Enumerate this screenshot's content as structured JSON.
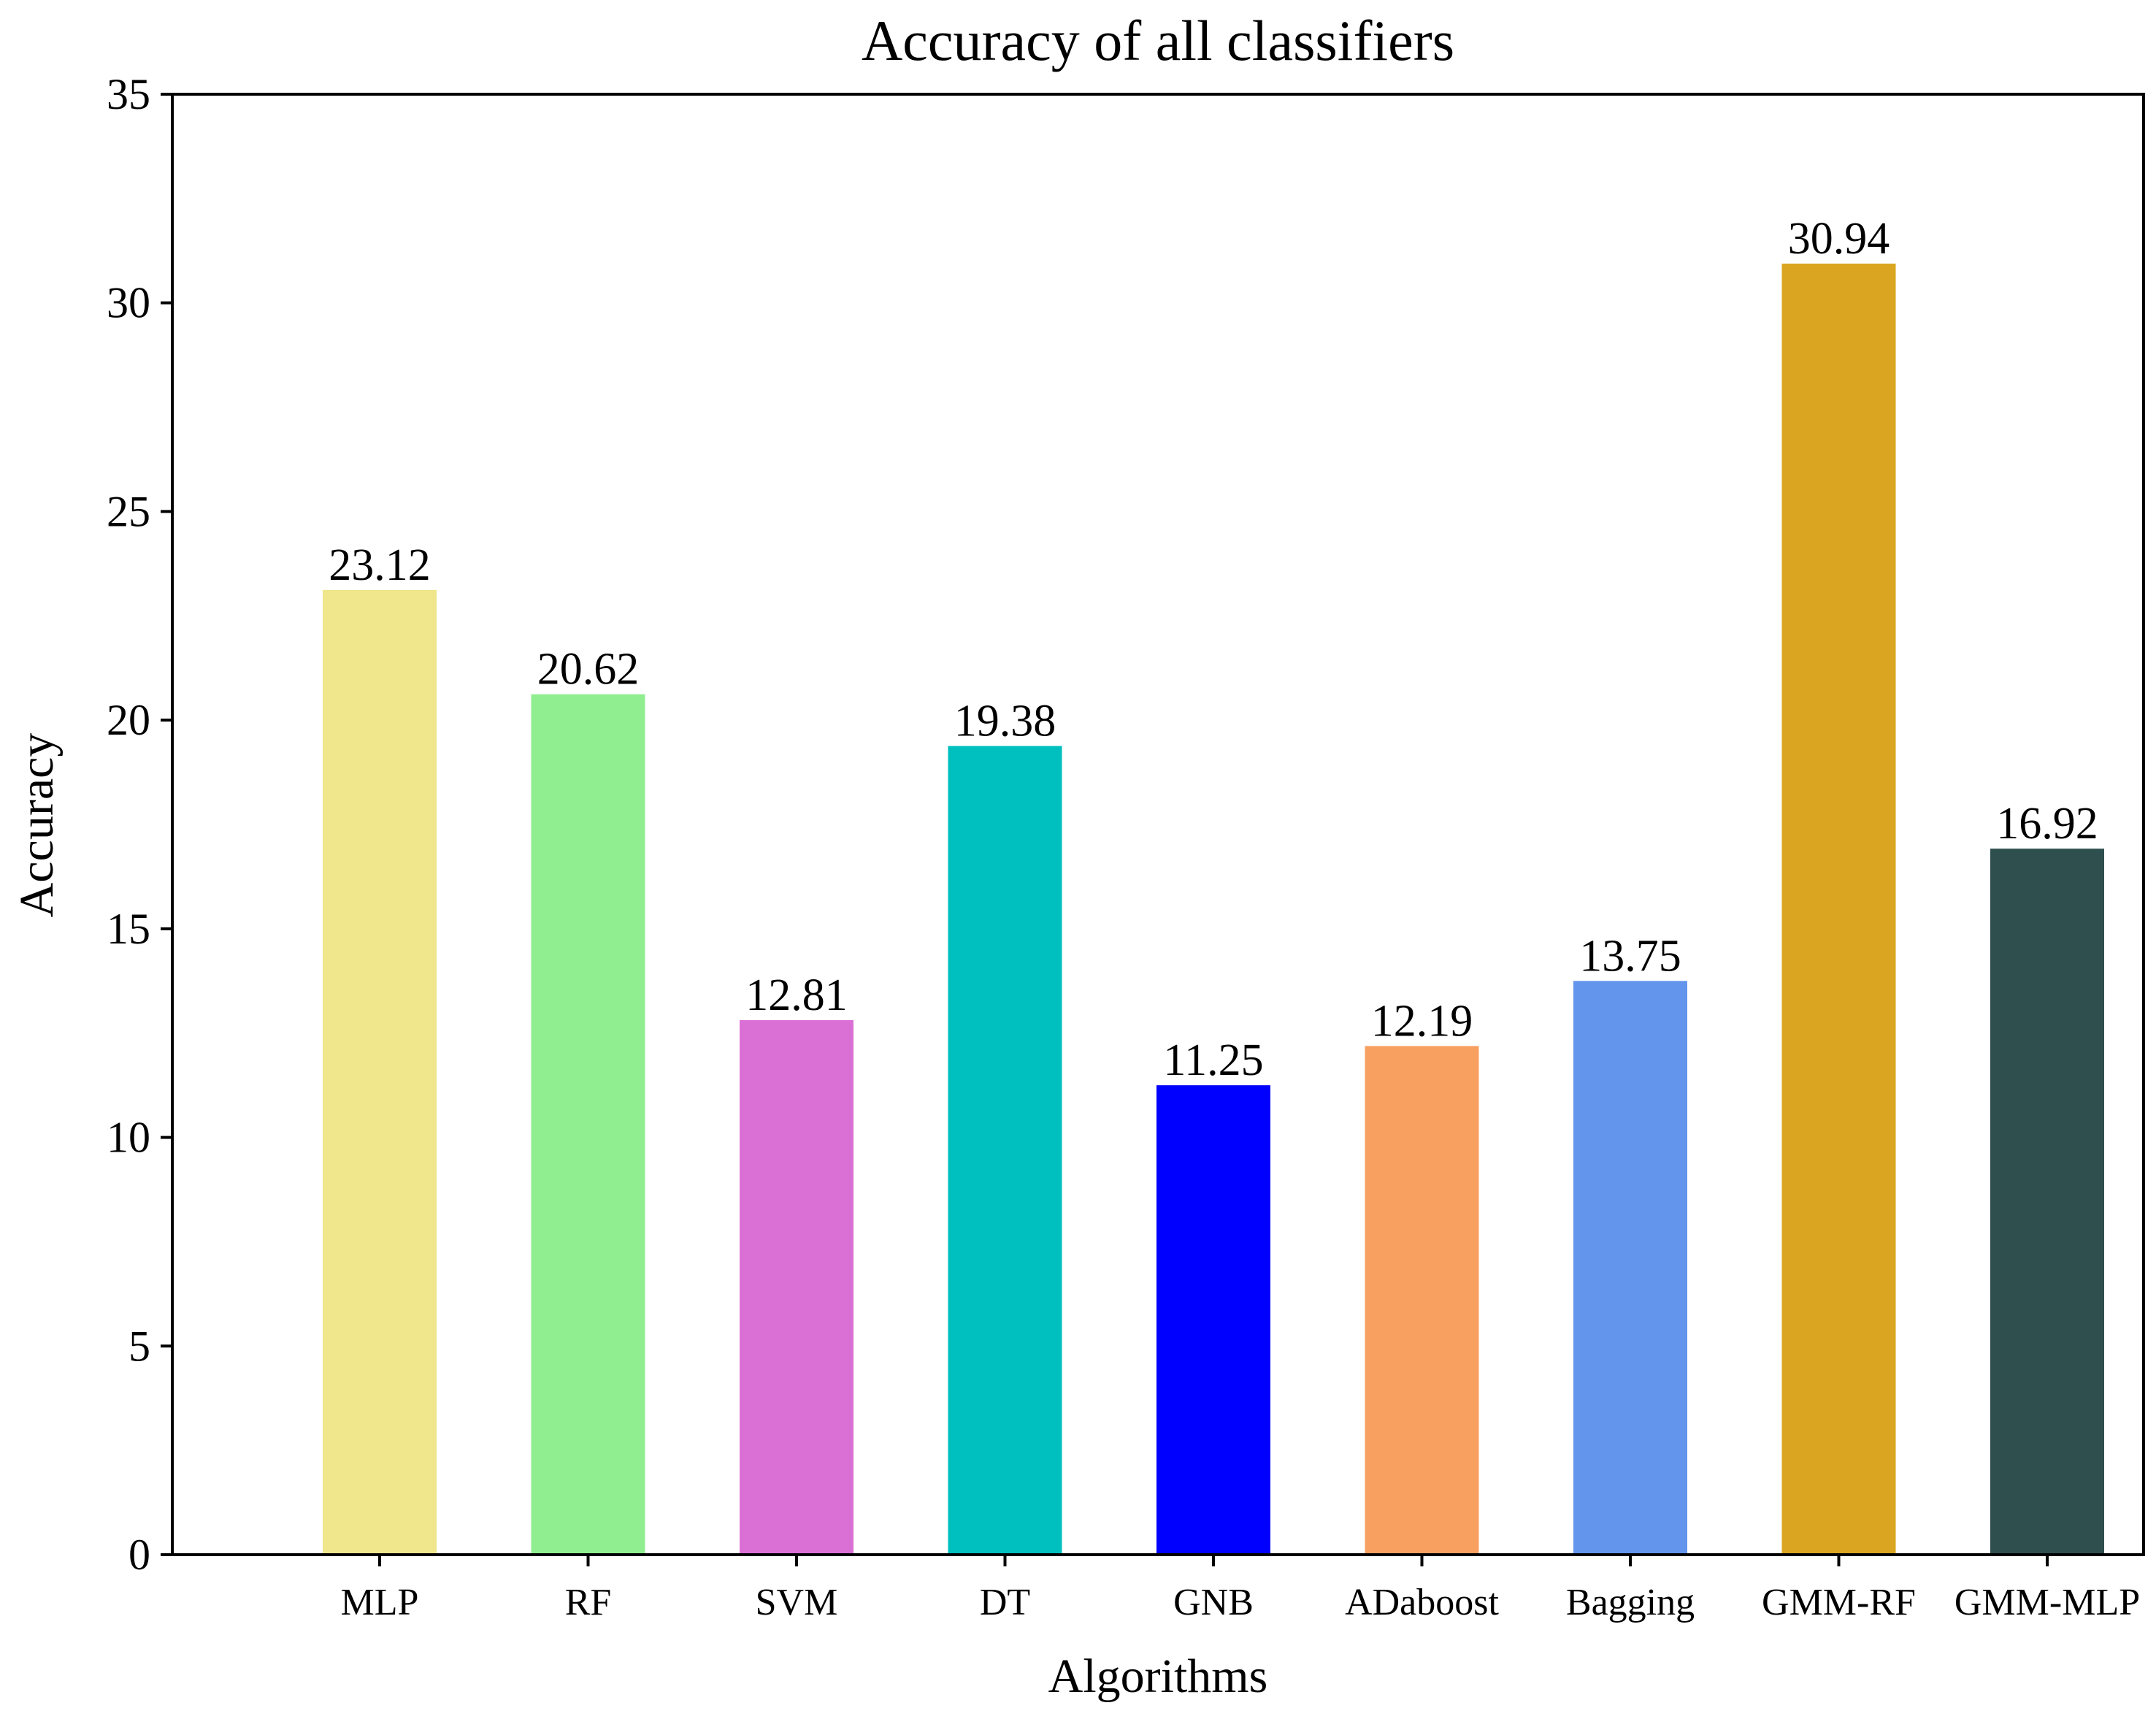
{
  "chart_data": {
    "type": "bar",
    "title": "Accuracy of all classifiers",
    "xlabel": "Algorithms",
    "ylabel": "Accuracy",
    "categories": [
      "MLP",
      "RF",
      "SVM",
      "DT",
      "GNB",
      "ADaboost",
      "Bagging",
      "GMM-RF",
      "GMM-MLP"
    ],
    "values": [
      23.12,
      20.62,
      12.81,
      19.38,
      11.25,
      12.19,
      13.75,
      30.94,
      16.92
    ],
    "value_labels": [
      "23.12",
      "20.62",
      "12.81",
      "19.38",
      "11.25",
      "12.19",
      "13.75",
      "30.94",
      "16.92"
    ],
    "colors": [
      "#f0e68c",
      "#90ee90",
      "#da70d6",
      "#00bfbf",
      "#0000ff",
      "#f8a060",
      "#6495ed",
      "#daa520",
      "#2f4f4f"
    ],
    "ylim": [
      0,
      35
    ],
    "yticks": [
      0,
      5,
      10,
      15,
      20,
      25,
      30,
      35
    ],
    "ytick_labels": [
      "0",
      "5",
      "10",
      "15",
      "20",
      "25",
      "30",
      "35"
    ],
    "grid": false,
    "legend": null
  }
}
